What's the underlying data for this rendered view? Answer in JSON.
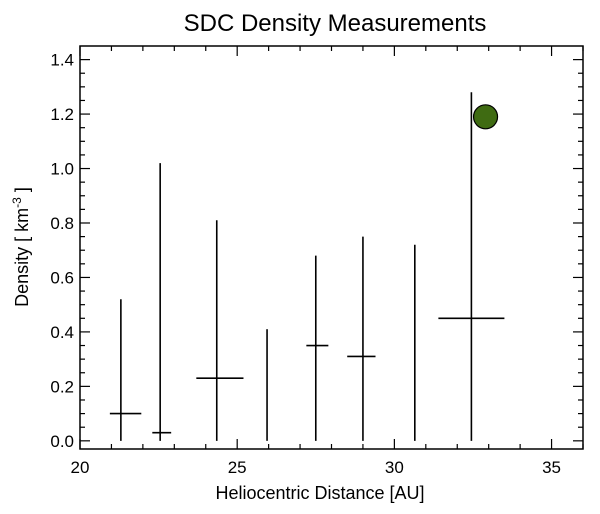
{
  "chart_data": {
    "type": "scatter",
    "title": "SDC Density Measurements",
    "xlabel": "Heliocentric Distance [AU]",
    "ylabel_prefix": "Density [ km",
    "ylabel_sup": "-3",
    "ylabel_suffix": " ]",
    "xlim": [
      20,
      36
    ],
    "ylim": [
      -0.03,
      1.45
    ],
    "xticks": [
      20,
      25,
      30,
      35
    ],
    "yticks": [
      0.0,
      0.2,
      0.4,
      0.6,
      0.8,
      1.0,
      1.2,
      1.4
    ],
    "ytick_labels": [
      "0.0",
      "0.2",
      "0.4",
      "0.6",
      "0.8",
      "1.0",
      "1.2",
      "1.4"
    ],
    "grid": false,
    "series": [
      {
        "points": [
          {
            "x_low": 20.95,
            "x_high": 21.95,
            "x_line": 21.3,
            "y": 0.1,
            "y_low": 0.0,
            "y_high": 0.52
          },
          {
            "x_low": 22.3,
            "x_high": 22.9,
            "x_line": 22.55,
            "y": 0.03,
            "y_low": 0.0,
            "y_high": 1.02
          },
          {
            "x_low": 23.7,
            "x_high": 25.2,
            "x_line": 24.35,
            "y": 0.23,
            "y_low": 0.0,
            "y_high": 0.81
          },
          {
            "x_low": 25.95,
            "x_high": 25.95,
            "x_line": 25.95,
            "y": 0.0,
            "y_low": 0.0,
            "y_high": 0.41
          },
          {
            "x_low": 27.2,
            "x_high": 27.9,
            "x_line": 27.5,
            "y": 0.35,
            "y_low": 0.0,
            "y_high": 0.68
          },
          {
            "x_low": 28.5,
            "x_high": 29.4,
            "x_line": 29.0,
            "y": 0.31,
            "y_low": 0.0,
            "y_high": 0.75
          },
          {
            "x_low": 30.65,
            "x_high": 30.65,
            "x_line": 30.65,
            "y": 0.0,
            "y_low": 0.0,
            "y_high": 0.72
          },
          {
            "x_low": 31.4,
            "x_high": 33.5,
            "x_line": 32.45,
            "y": 0.45,
            "y_low": 0.0,
            "y_high": 1.28
          }
        ]
      },
      {
        "marker": "circle",
        "color": "#3f6b12",
        "points": [
          {
            "x": 32.9,
            "y": 1.19
          }
        ]
      }
    ]
  }
}
